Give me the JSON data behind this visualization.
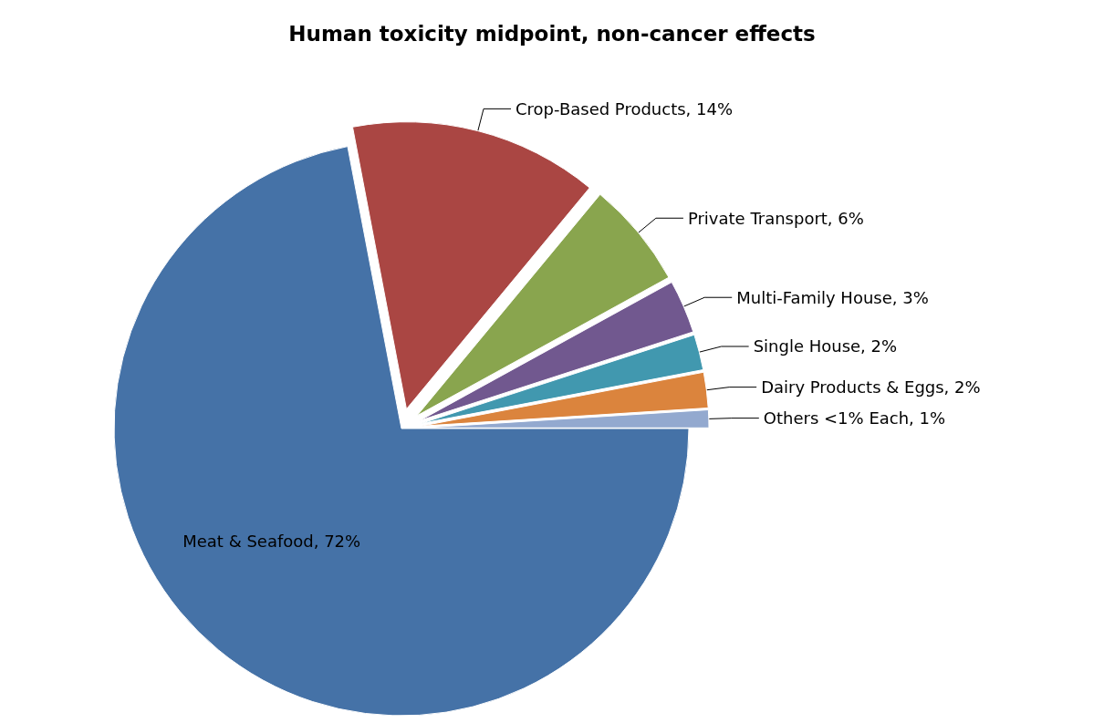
{
  "chart_data": {
    "type": "pie",
    "title": "Human toxicity midpoint, non-cancer effects",
    "categories": [
      "Meat & Seafood",
      "Crop-Based Products",
      "Private Transport",
      "Multi-Family House",
      "Single House",
      "Dairy Products & Eggs",
      "Others <1% Each"
    ],
    "values": [
      72,
      14,
      6,
      3,
      2,
      2,
      1
    ],
    "value_labels": [
      "72%",
      "14%",
      "6%",
      "3%",
      "2%",
      "2%",
      "1%"
    ],
    "colors": [
      "#4572a7",
      "#aa4643",
      "#89a54e",
      "#71588f",
      "#4198af",
      "#db843d",
      "#93a9cf"
    ],
    "legend": false
  }
}
